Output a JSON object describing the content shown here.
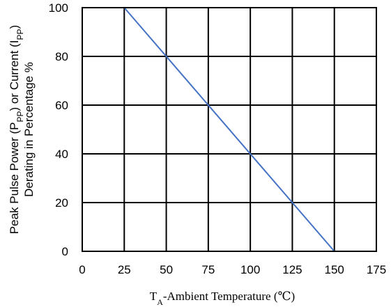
{
  "chart_data": {
    "type": "line",
    "title": "",
    "ylabel_lines": [
      "Peak Pulse Power (P{PP}) or Current (I{PP})",
      "Derating in Percentage %"
    ],
    "xlabel": "T{A}-Ambient Temperature (℃)",
    "xlim": [
      0,
      175
    ],
    "ylim": [
      0,
      100
    ],
    "xticks": [
      0,
      25,
      50,
      75,
      100,
      125,
      150,
      175
    ],
    "yticks": [
      0,
      20,
      40,
      60,
      80,
      100
    ],
    "grid": true,
    "series": [
      {
        "color": "#4472C4",
        "points": [
          [
            25,
            100
          ],
          [
            150,
            0
          ]
        ]
      }
    ]
  }
}
